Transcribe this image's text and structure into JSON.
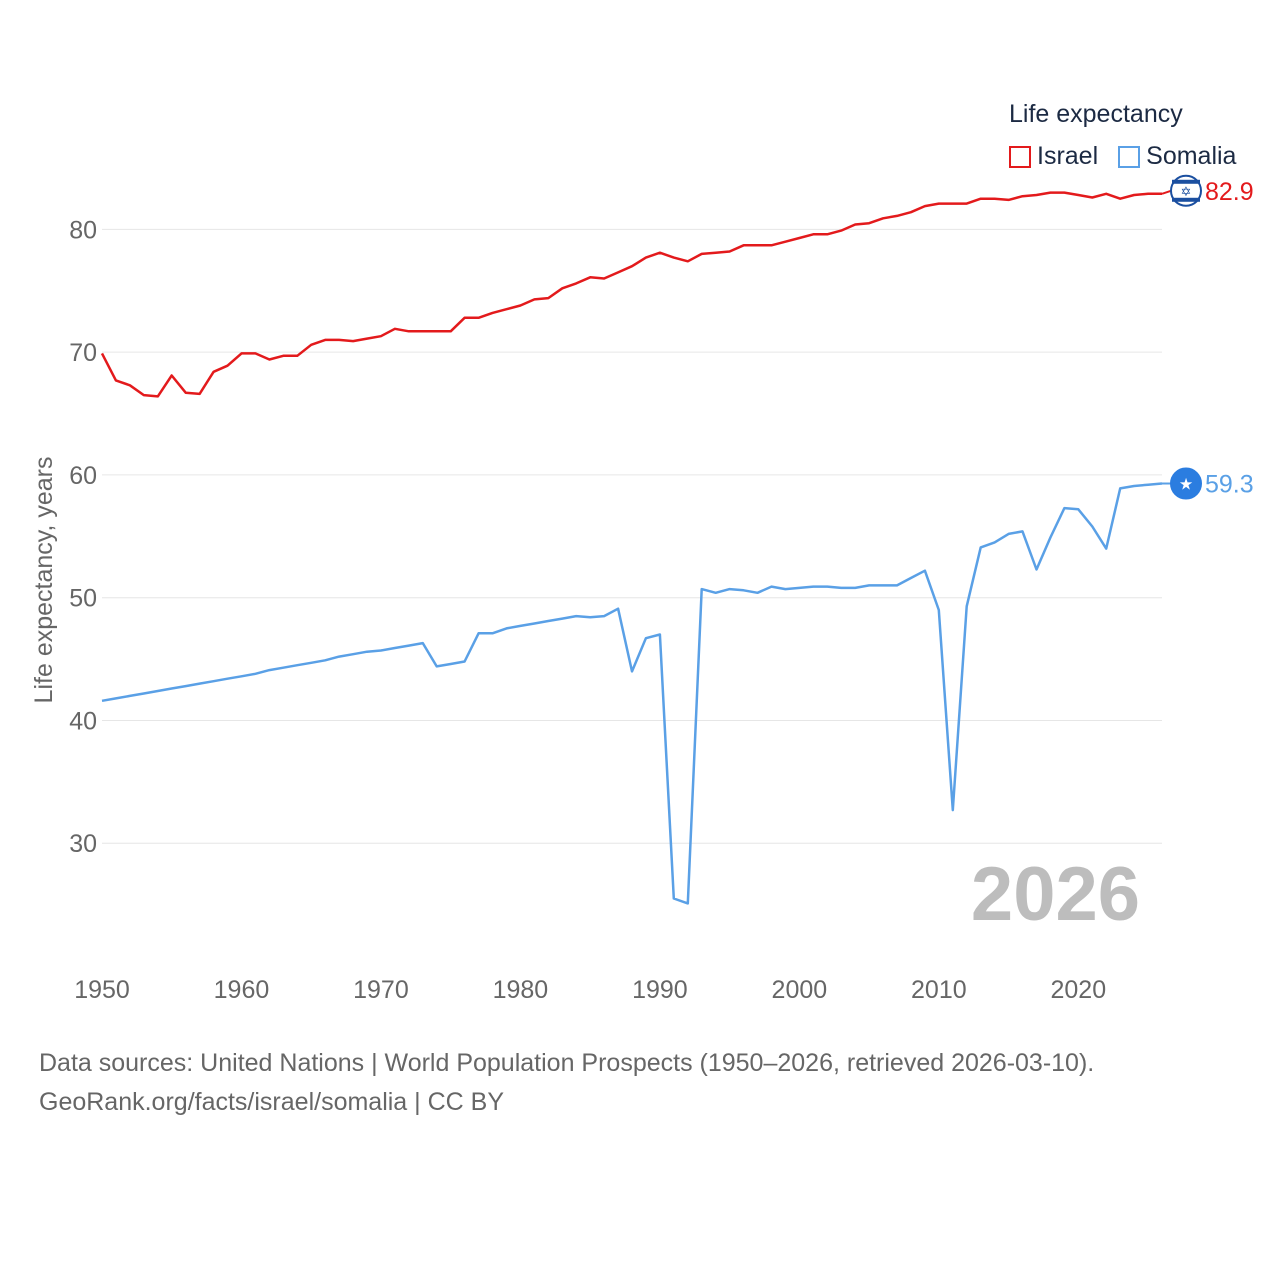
{
  "legend": {
    "title": "Life expectancy",
    "items": [
      {
        "name": "Israel",
        "color": "#e31a1c"
      },
      {
        "name": "Somalia",
        "color": "#5aa0e6"
      }
    ]
  },
  "footer": {
    "line1": "Data sources: United Nations | World Population Prospects (1950–2026, retrieved 2026-03-10).",
    "line2": "GeoRank.org/facts/israel/somalia | CC BY"
  },
  "chart_data": {
    "type": "line",
    "title": "Life expectancy",
    "xlabel": "",
    "ylabel": "Life expectancy, years",
    "xlim": [
      1950,
      2026
    ],
    "ylim": [
      20,
      85
    ],
    "xticks": [
      1950,
      1960,
      1970,
      1980,
      1990,
      2000,
      2010,
      2020
    ],
    "yticks": [
      30,
      40,
      50,
      60,
      70,
      80
    ],
    "grid": true,
    "watermark_year": "2026",
    "x": [
      1950,
      1951,
      1952,
      1953,
      1954,
      1955,
      1956,
      1957,
      1958,
      1959,
      1960,
      1961,
      1962,
      1963,
      1964,
      1965,
      1966,
      1967,
      1968,
      1969,
      1970,
      1971,
      1972,
      1973,
      1974,
      1975,
      1976,
      1977,
      1978,
      1979,
      1980,
      1981,
      1982,
      1983,
      1984,
      1985,
      1986,
      1987,
      1988,
      1989,
      1990,
      1991,
      1992,
      1993,
      1994,
      1995,
      1996,
      1997,
      1998,
      1999,
      2000,
      2001,
      2002,
      2003,
      2004,
      2005,
      2006,
      2007,
      2008,
      2009,
      2010,
      2011,
      2012,
      2013,
      2014,
      2015,
      2016,
      2017,
      2018,
      2019,
      2020,
      2021,
      2022,
      2023,
      2024,
      2025,
      2026
    ],
    "series": [
      {
        "name": "Israel",
        "color": "#e31a1c",
        "end_label": "82.9",
        "values": [
          69.9,
          67.7,
          67.3,
          66.5,
          66.4,
          68.1,
          66.7,
          66.6,
          68.4,
          68.9,
          69.9,
          69.9,
          69.4,
          69.7,
          69.7,
          70.6,
          71.0,
          71.0,
          70.9,
          71.1,
          71.3,
          71.9,
          71.7,
          71.7,
          71.7,
          71.7,
          72.8,
          72.8,
          73.2,
          73.5,
          73.8,
          74.3,
          74.4,
          75.2,
          75.6,
          76.1,
          76.0,
          76.5,
          77.0,
          77.7,
          78.1,
          77.7,
          77.4,
          78.0,
          78.1,
          78.2,
          78.7,
          78.7,
          78.7,
          79.0,
          79.3,
          79.6,
          79.6,
          79.9,
          80.4,
          80.5,
          80.9,
          81.1,
          81.4,
          81.9,
          82.1,
          82.1,
          82.1,
          82.5,
          82.5,
          82.4,
          82.7,
          82.8,
          83.0,
          83.0,
          82.8,
          82.6,
          82.9,
          82.5,
          82.8,
          82.9,
          82.9
        ]
      },
      {
        "name": "Somalia",
        "color": "#5aa0e6",
        "end_label": "59.3",
        "values": [
          41.6,
          41.8,
          42.0,
          42.2,
          42.4,
          42.6,
          42.8,
          43.0,
          43.2,
          43.4,
          43.6,
          43.8,
          44.1,
          44.3,
          44.5,
          44.7,
          44.9,
          45.2,
          45.4,
          45.6,
          45.7,
          45.9,
          46.1,
          46.3,
          44.4,
          44.6,
          44.8,
          47.1,
          47.1,
          47.5,
          47.7,
          47.9,
          48.1,
          48.3,
          48.5,
          48.4,
          48.5,
          49.1,
          44.0,
          46.7,
          47.0,
          25.5,
          25.1,
          50.7,
          50.4,
          50.7,
          50.6,
          50.4,
          50.9,
          50.7,
          50.8,
          50.9,
          50.9,
          50.8,
          50.8,
          51.0,
          51.0,
          51.0,
          51.6,
          52.2,
          49.0,
          32.7,
          49.3,
          54.1,
          54.5,
          55.2,
          55.4,
          52.3,
          54.9,
          57.3,
          57.2,
          55.8,
          54.0,
          58.9,
          59.1,
          59.2,
          59.3
        ]
      }
    ]
  }
}
